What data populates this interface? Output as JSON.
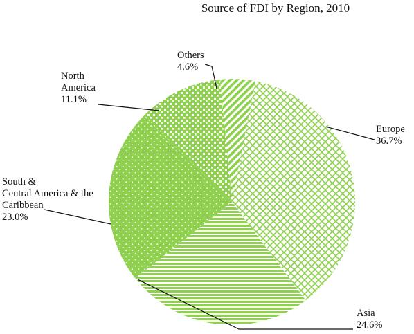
{
  "chart_data": {
    "type": "pie",
    "title": "Source of FDI by Region, 2010",
    "start_angle_deg": 11,
    "direction": "clockwise",
    "slices": [
      {
        "label": "Europe",
        "value": 36.7,
        "value_label": "36.7%",
        "color": "#8fd14f",
        "pattern": "diamond-outline"
      },
      {
        "label": "Asia",
        "value": 24.6,
        "value_label": "24.6%",
        "color": "#8fd14f",
        "pattern": "horizontal-lines"
      },
      {
        "label": "South & Central  America & the Caribbean",
        "value": 23.0,
        "value_label": "23.0%",
        "color": "#8fd14f",
        "pattern": "dots"
      },
      {
        "label": "North America",
        "value": 11.1,
        "value_label": "11.1%",
        "color": "#8fd14f",
        "pattern": "checker"
      },
      {
        "label": "Others",
        "value": 4.6,
        "value_label": "4.6%",
        "color": "#8fd14f",
        "pattern": "diagonal-lines"
      }
    ],
    "label_lines": {
      "Europe": [
        "36.7%"
      ],
      "Asia": [
        "Asia",
        "24.6%"
      ],
      "South & Central  America & the Caribbean": [
        "South &",
        "Central  America & the",
        "Caribbean",
        "23.0%"
      ],
      "North America": [
        "North",
        "America",
        "11.1%"
      ],
      "Others": [
        "Others",
        "4.6%"
      ]
    }
  }
}
